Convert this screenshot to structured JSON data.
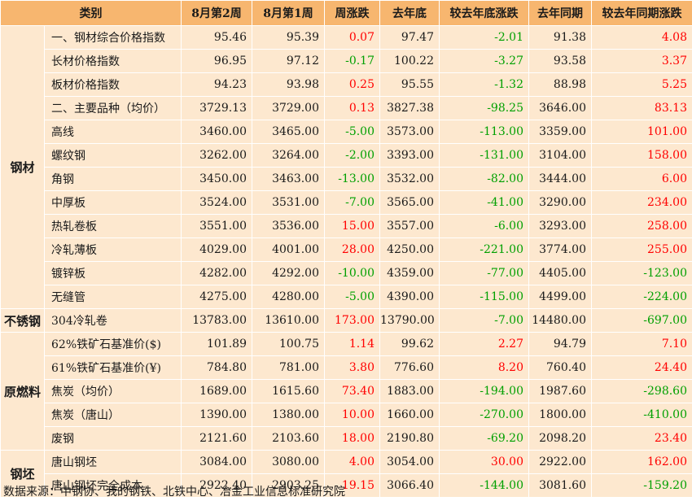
{
  "headers": [
    "类别",
    "8月第2周",
    "8月第1周",
    "周涨跌",
    "去年底",
    "较去年底涨跌",
    "去年同期",
    "较去年同期涨跌"
  ],
  "groups": [
    {
      "category": "钢材",
      "rows": [
        {
          "name": "一、钢材综合价格指数",
          "w2": "95.46",
          "w1": "95.39",
          "wchg": "0.07",
          "ye": "97.47",
          "yechg": "-2.01",
          "ly": "91.38",
          "lychg": "4.08"
        },
        {
          "name": "长材价格指数",
          "w2": "96.95",
          "w1": "97.12",
          "wchg": "-0.17",
          "ye": "100.22",
          "yechg": "-3.27",
          "ly": "93.58",
          "lychg": "3.37"
        },
        {
          "name": "板材价格指数",
          "w2": "94.23",
          "w1": "93.98",
          "wchg": "0.25",
          "ye": "95.55",
          "yechg": "-1.32",
          "ly": "88.98",
          "lychg": "5.25"
        },
        {
          "name": "二、主要品种（均价）",
          "w2": "3729.13",
          "w1": "3729.00",
          "wchg": "0.13",
          "ye": "3827.38",
          "yechg": "-98.25",
          "ly": "3646.00",
          "lychg": "83.13"
        },
        {
          "name": "高线",
          "w2": "3460.00",
          "w1": "3465.00",
          "wchg": "-5.00",
          "ye": "3573.00",
          "yechg": "-113.00",
          "ly": "3359.00",
          "lychg": "101.00"
        },
        {
          "name": "螺纹钢",
          "w2": "3262.00",
          "w1": "3264.00",
          "wchg": "-2.00",
          "ye": "3393.00",
          "yechg": "-131.00",
          "ly": "3104.00",
          "lychg": "158.00"
        },
        {
          "name": "角钢",
          "w2": "3450.00",
          "w1": "3463.00",
          "wchg": "-13.00",
          "ye": "3532.00",
          "yechg": "-82.00",
          "ly": "3444.00",
          "lychg": "6.00"
        },
        {
          "name": "中厚板",
          "w2": "3524.00",
          "w1": "3531.00",
          "wchg": "-7.00",
          "ye": "3565.00",
          "yechg": "-41.00",
          "ly": "3290.00",
          "lychg": "234.00"
        },
        {
          "name": "热轧卷板",
          "w2": "3551.00",
          "w1": "3536.00",
          "wchg": "15.00",
          "ye": "3557.00",
          "yechg": "-6.00",
          "ly": "3293.00",
          "lychg": "258.00"
        },
        {
          "name": "冷轧薄板",
          "w2": "4029.00",
          "w1": "4001.00",
          "wchg": "28.00",
          "ye": "4250.00",
          "yechg": "-221.00",
          "ly": "3774.00",
          "lychg": "255.00"
        },
        {
          "name": "镀锌板",
          "w2": "4282.00",
          "w1": "4292.00",
          "wchg": "-10.00",
          "ye": "4359.00",
          "yechg": "-77.00",
          "ly": "4405.00",
          "lychg": "-123.00"
        },
        {
          "name": "无缝管",
          "w2": "4275.00",
          "w1": "4280.00",
          "wchg": "-5.00",
          "ye": "4390.00",
          "yechg": "-115.00",
          "ly": "4499.00",
          "lychg": "-224.00"
        }
      ]
    },
    {
      "category": "不锈钢",
      "rows": [
        {
          "name": "304冷轧卷",
          "w2": "13783.00",
          "w1": "13610.00",
          "wchg": "173.00",
          "ye": "13790.00",
          "yechg": "-7.00",
          "ly": "14480.00",
          "lychg": "-697.00"
        }
      ]
    },
    {
      "category": "原燃料",
      "rows": [
        {
          "name": "62%铁矿石基准价($)",
          "w2": "101.89",
          "w1": "100.75",
          "wchg": "1.14",
          "ye": "99.62",
          "yechg": "2.27",
          "ly": "94.79",
          "lychg": "7.10"
        },
        {
          "name": "61%铁矿石基准价(¥)",
          "w2": "784.80",
          "w1": "781.00",
          "wchg": "3.80",
          "ye": "776.60",
          "yechg": "8.20",
          "ly": "760.40",
          "lychg": "24.40"
        },
        {
          "name": "焦炭（均价）",
          "w2": "1689.00",
          "w1": "1615.60",
          "wchg": "73.40",
          "ye": "1883.00",
          "yechg": "-194.00",
          "ly": "1987.60",
          "lychg": "-298.60"
        },
        {
          "name": "焦炭（唐山）",
          "w2": "1390.00",
          "w1": "1380.00",
          "wchg": "10.00",
          "ye": "1660.00",
          "yechg": "-270.00",
          "ly": "1800.00",
          "lychg": "-410.00"
        },
        {
          "name": "废钢",
          "w2": "2121.60",
          "w1": "2103.60",
          "wchg": "18.00",
          "ye": "2190.80",
          "yechg": "-69.20",
          "ly": "2098.20",
          "lychg": "23.40"
        }
      ]
    },
    {
      "category": "钢坯",
      "rows": [
        {
          "name": "唐山钢坯",
          "w2": "3084.00",
          "w1": "3080.00",
          "wchg": "4.00",
          "ye": "3054.00",
          "yechg": "30.00",
          "ly": "2922.00",
          "lychg": "162.00"
        },
        {
          "name": "唐山钢坯完全成本",
          "w2": "2922.40",
          "w1": "2903.25",
          "wchg": "19.15",
          "ye": "3066.40",
          "yechg": "-144.00",
          "ly": "3081.60",
          "lychg": "-159.20"
        }
      ]
    }
  ],
  "source": "数据来源：中钢协、我的钢铁、北铁中心、冶金工业信息标准研究院",
  "colors": {
    "header_bg": "#f7b66f",
    "row_bg": "#fde8cf",
    "up": "#ff0000",
    "down": "#00a000"
  }
}
